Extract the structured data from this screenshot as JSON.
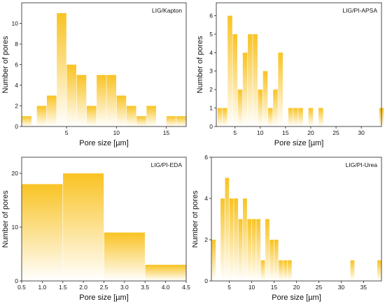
{
  "chart_data": [
    {
      "type": "bar",
      "title": "LIG/Kapton",
      "xlabel": "Pore size [µm]",
      "ylabel": "Number of pores",
      "xlim": [
        0.5,
        17
      ],
      "ylim": [
        0,
        12
      ],
      "xticks": [
        5,
        10,
        15
      ],
      "yticks": [
        0,
        2,
        4,
        6,
        8,
        10
      ],
      "x": [
        1,
        2.5,
        3.5,
        4.5,
        5.5,
        6.5,
        7.5,
        8.5,
        9.5,
        10.5,
        11.5,
        12.5,
        13.5,
        15.5,
        16.5
      ],
      "values": [
        1,
        2,
        3,
        11,
        6,
        5,
        2,
        5,
        5,
        3,
        2,
        1,
        2,
        1,
        1
      ],
      "bin_width": 1,
      "color": "#f9c323"
    },
    {
      "type": "bar",
      "title": "LIG/PI-APSA",
      "xlabel": "Pore size [µm]",
      "ylabel": "Number of pores",
      "xlim": [
        1.3,
        34
      ],
      "ylim": [
        0,
        6.7
      ],
      "xticks": [
        5,
        10,
        15,
        20,
        25,
        30
      ],
      "yticks": [
        0,
        1,
        2,
        3,
        4,
        5,
        6
      ],
      "x": [
        2,
        3,
        4,
        5,
        6,
        7,
        8,
        9,
        10,
        11,
        12,
        13,
        14,
        16,
        17,
        18,
        20,
        22,
        34
      ],
      "values": [
        1,
        1,
        6,
        5,
        2,
        4,
        5,
        5,
        2,
        3,
        1,
        2,
        4,
        1,
        1,
        1,
        1,
        1,
        1
      ],
      "bin_width": 1,
      "color": "#f9c323"
    },
    {
      "type": "bar",
      "title": "LIG/PI-EDA",
      "xlabel": "Pore size [µm]",
      "ylabel": "Number of pores",
      "xlim": [
        0.5,
        4.5
      ],
      "ylim": [
        0,
        23
      ],
      "xticks": [
        0.5,
        1.0,
        1.5,
        2.0,
        2.5,
        3.0,
        3.5,
        4.0,
        4.5
      ],
      "xtick_labels": [
        "0.5",
        "1.0",
        "1.5",
        "2.0",
        "2.5",
        "3.0",
        "3.5",
        "4.0",
        "4.5"
      ],
      "yticks": [
        0,
        10,
        20
      ],
      "x": [
        1,
        2,
        3,
        4
      ],
      "values": [
        18,
        20,
        9,
        3
      ],
      "bin_width": 1,
      "color": "#f9c323"
    },
    {
      "type": "bar",
      "title": "LIG/PI-Urea",
      "xlabel": "Pore size [µm]",
      "ylabel": "Number of pores",
      "xlim": [
        1,
        39
      ],
      "ylim": [
        0,
        6
      ],
      "xticks": [
        5,
        10,
        15,
        20,
        25,
        30,
        35
      ],
      "yticks": [
        0,
        2,
        4,
        6
      ],
      "x": [
        1.5,
        3.5,
        4.5,
        5.5,
        6.5,
        7.5,
        8.5,
        9.5,
        10.5,
        11.5,
        12.5,
        13.5,
        14.5,
        15.5,
        16.5,
        17.5,
        18.5,
        32.5,
        38.5
      ],
      "values": [
        2,
        4,
        5,
        4,
        4,
        3,
        4,
        3,
        3,
        3,
        1,
        3,
        2,
        2,
        1,
        1,
        1,
        1,
        1
      ],
      "bin_width": 1,
      "color": "#f9c323"
    }
  ]
}
